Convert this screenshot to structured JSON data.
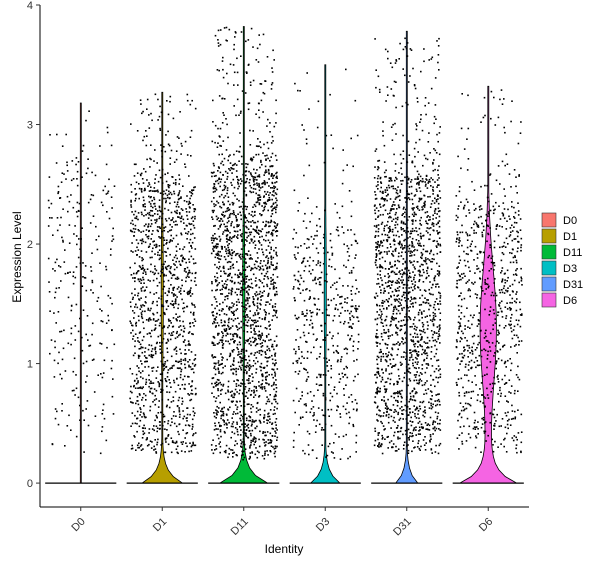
{
  "chart_data": {
    "type": "violin",
    "title": "",
    "xlabel": "Identity",
    "ylabel": "Expression Level",
    "ylim": [
      -0.2,
      4.0
    ],
    "yticks": [
      0,
      1,
      2,
      3,
      4
    ],
    "grid": false,
    "legend_position": "right",
    "categories": [
      "D0",
      "D1",
      "D11",
      "D3",
      "D31",
      "D6"
    ],
    "series": [
      {
        "name": "D0",
        "color": "#F8766D",
        "n_points": 700,
        "zero_frac": 0.55,
        "max": 3.18,
        "body_width": 0.0,
        "median": 0,
        "jitter_range": [
          0.25,
          2.55
        ],
        "upper_density": 0.6
      },
      {
        "name": "D1",
        "color": "#B79F00",
        "n_points": 2300,
        "zero_frac": 0.35,
        "max": 3.27,
        "body_width": 0.55,
        "median": 0,
        "jitter_range": [
          0.25,
          2.45
        ],
        "upper_density": 1.0
      },
      {
        "name": "D11",
        "color": "#00BA38",
        "n_points": 3000,
        "zero_frac": 0.25,
        "max": 3.82,
        "body_width": 0.65,
        "median": 0,
        "jitter_range": [
          0.2,
          2.6
        ],
        "upper_density": 1.1
      },
      {
        "name": "D3",
        "color": "#00BFC4",
        "n_points": 1200,
        "zero_frac": 0.5,
        "max": 3.5,
        "body_width": 0.4,
        "median": 0,
        "jitter_range": [
          0.2,
          2.1
        ],
        "upper_density": 0.7
      },
      {
        "name": "D31",
        "color": "#619CFF",
        "n_points": 2800,
        "zero_frac": 0.3,
        "max": 3.78,
        "body_width": 0.3,
        "median": 0,
        "jitter_range": [
          0.25,
          2.55
        ],
        "upper_density": 1.1
      },
      {
        "name": "D6",
        "color": "#F564E3",
        "n_points": 1500,
        "zero_frac": 0.4,
        "max": 3.32,
        "body_width": 0.65,
        "median": 0.3,
        "jitter_range": [
          0.25,
          2.3
        ],
        "upper_density": 0.9
      }
    ]
  }
}
